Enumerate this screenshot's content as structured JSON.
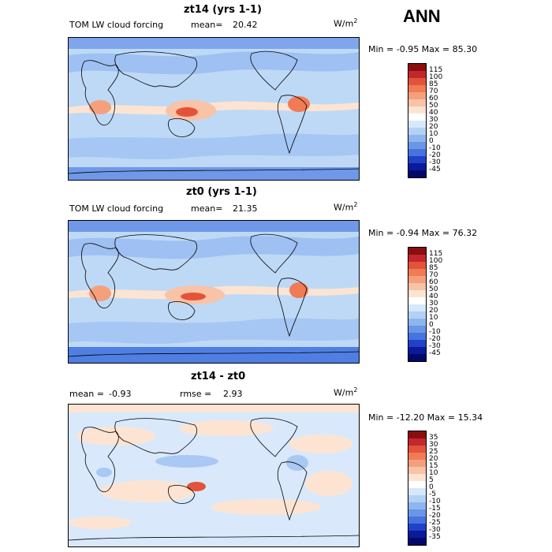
{
  "season": "ANN",
  "panels": [
    {
      "title": "zt14 (yrs 1-1)",
      "variable": "TOM LW cloud forcing",
      "stat_label": "mean=",
      "stat_value": "20.42",
      "units_base": "W/m",
      "units_exp": "2",
      "minmax": "Min =  -0.95  Max =  85.30",
      "colorbar_labels": [
        "115",
        "100",
        "85",
        "70",
        "60",
        "50",
        "40",
        "30",
        "20",
        "10",
        "0",
        "-10",
        "-20",
        "-30",
        "-45"
      ],
      "colorbar_colors": [
        "#8b0d0d",
        "#c1272d",
        "#e2533a",
        "#f07b55",
        "#f5a07d",
        "#f8c3a6",
        "#fde4d2",
        "#ffffff",
        "#d6e8fb",
        "#b4d1f5",
        "#8eb6ee",
        "#6a96e6",
        "#4673e0",
        "#2141c8",
        "#0a1a9a",
        "#03086b"
      ],
      "map_base": "#bed9f6"
    },
    {
      "title": "zt0 (yrs 1-1)",
      "variable": "TOM LW cloud forcing",
      "stat_label": "mean=",
      "stat_value": "21.35",
      "units_base": "W/m",
      "units_exp": "2",
      "minmax": "Min =  -0.94  Max =  76.32",
      "colorbar_labels": [
        "115",
        "100",
        "85",
        "70",
        "60",
        "50",
        "40",
        "30",
        "20",
        "10",
        "0",
        "-10",
        "-20",
        "-30",
        "-45"
      ],
      "colorbar_colors": [
        "#8b0d0d",
        "#c1272d",
        "#e2533a",
        "#f07b55",
        "#f5a07d",
        "#f8c3a6",
        "#fde4d2",
        "#ffffff",
        "#d6e8fb",
        "#b4d1f5",
        "#8eb6ee",
        "#6a96e6",
        "#4673e0",
        "#2141c8",
        "#0a1a9a",
        "#03086b"
      ],
      "map_base": "#bed9f6"
    },
    {
      "title": "zt14 - zt0",
      "mean_label": "mean =",
      "mean_value": "-0.93",
      "rmse_label": "rmse =",
      "rmse_value": "2.93",
      "units_base": "W/m",
      "units_exp": "2",
      "minmax": "Min = -12.20  Max =  15.34",
      "colorbar_labels": [
        "35",
        "30",
        "25",
        "20",
        "15",
        "10",
        "5",
        "0",
        "-5",
        "-10",
        "-15",
        "-20",
        "-25",
        "-30",
        "-35"
      ],
      "colorbar_colors": [
        "#8b0d0d",
        "#c1272d",
        "#e2533a",
        "#f07b55",
        "#f5a07d",
        "#f8c3a6",
        "#fde4d2",
        "#ffffff",
        "#d6e8fb",
        "#b4d1f5",
        "#8eb6ee",
        "#6a96e6",
        "#4673e0",
        "#2141c8",
        "#0a1a9a",
        "#03086b"
      ],
      "map_base": "#d9e9fb"
    }
  ]
}
